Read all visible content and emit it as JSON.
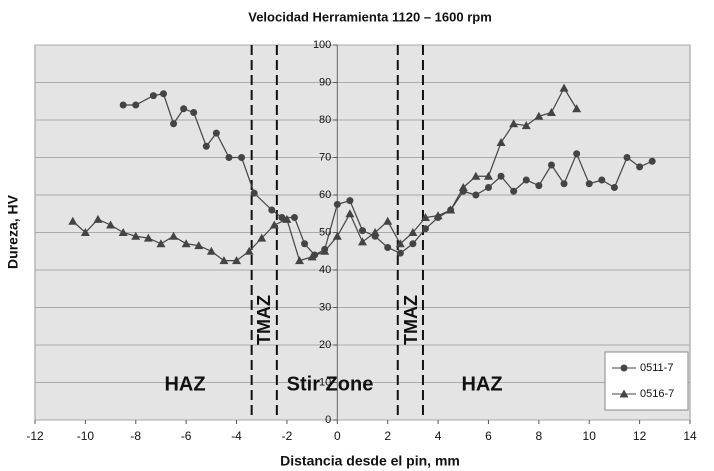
{
  "chart_data": {
    "type": "line",
    "title": "Velocidad Herramienta 1120 – 1600 rpm",
    "xlabel": "Distancia desde el pin, mm",
    "ylabel": "Dureza, HV",
    "xlim": [
      -12,
      14
    ],
    "xticks": [
      -12,
      -10,
      -8,
      -6,
      -4,
      -2,
      0,
      2,
      4,
      6,
      8,
      10,
      12,
      14
    ],
    "ylim": [
      0,
      100
    ],
    "yticks": [
      0,
      10,
      20,
      30,
      40,
      50,
      60,
      70,
      80,
      90,
      100
    ],
    "grid": true,
    "legend": "lower right",
    "vlines": [
      -3.4,
      -2.4,
      2.4,
      3.4
    ],
    "annotations": [
      "HAZ",
      "TMAZ",
      "Stir Zone",
      "TMAZ",
      "HAZ"
    ],
    "series": [
      {
        "name": "0511-7",
        "color": "#444444",
        "marker": "circle",
        "x": [
          -8.5,
          -8,
          -7.3,
          -6.9,
          -6.5,
          -6.1,
          -5.7,
          -5.2,
          -4.8,
          -4.3,
          -3.8,
          -3.3,
          -2.6,
          -2.2,
          -1.7,
          -1.3,
          -0.9,
          -0.5,
          0,
          0.5,
          1,
          1.5,
          2,
          2.5,
          3,
          3.5,
          4,
          4.5,
          5,
          5.5,
          6,
          6.5,
          7,
          7.5,
          8,
          8.5,
          9,
          9.5,
          10,
          10.5,
          11,
          11.5,
          12,
          12.5
        ],
        "values": [
          84,
          84,
          86.5,
          87,
          79,
          83,
          82,
          73,
          76.5,
          70,
          70,
          60.5,
          56,
          54,
          54,
          47,
          44,
          45.5,
          57.5,
          58.5,
          50.5,
          49,
          46,
          44.5,
          47,
          51,
          54,
          56,
          61,
          60,
          62,
          65,
          61,
          64,
          62.5,
          68,
          63,
          71,
          63,
          64,
          62,
          70,
          67.5,
          69
        ]
      },
      {
        "name": "0516-7",
        "color": "#444444",
        "marker": "triangle",
        "x": [
          -10.5,
          -10,
          -9.5,
          -9,
          -8.5,
          -8,
          -7.5,
          -7,
          -6.5,
          -6,
          -5.5,
          -5,
          -4.5,
          -4,
          -3.5,
          -3,
          -2.5,
          -2,
          -1.5,
          -1,
          -0.5,
          0,
          0.5,
          1,
          1.5,
          2,
          2.5,
          3,
          3.5,
          4,
          4.5,
          5,
          5.5,
          6,
          6.5,
          7,
          7.5,
          8,
          8.5,
          9,
          9.5
        ],
        "values": [
          53,
          50,
          53.5,
          52,
          50,
          49,
          48.5,
          47,
          49,
          47,
          46.5,
          45,
          42.5,
          42.5,
          45,
          48.5,
          52,
          53.5,
          42.5,
          43.5,
          45,
          49,
          55,
          47.5,
          50,
          53,
          47,
          50,
          54,
          54.5,
          56,
          62,
          65,
          65,
          74,
          79,
          78.5,
          81,
          82,
          88.5,
          83
        ]
      }
    ]
  }
}
